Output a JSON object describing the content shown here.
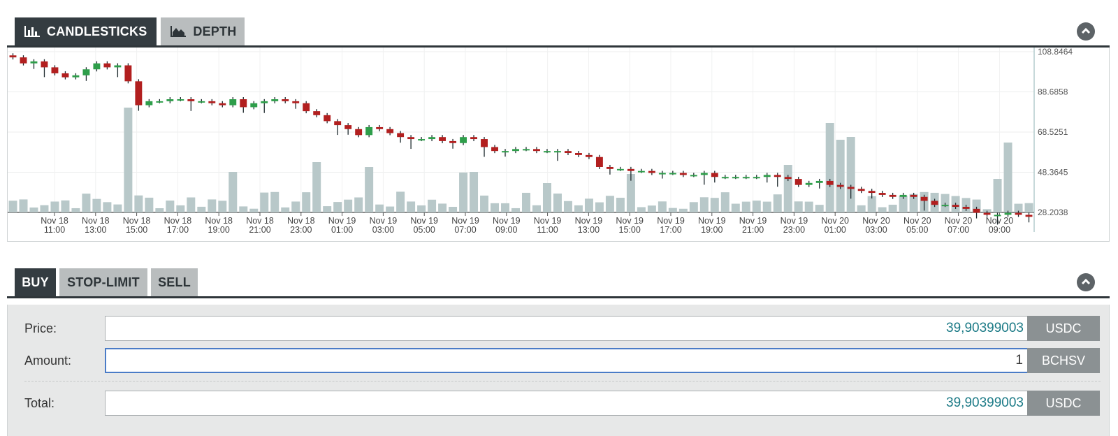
{
  "chart_panel": {
    "tabs": [
      {
        "label": "CANDLESTICKS",
        "icon": "bar-chart-icon",
        "active": true
      },
      {
        "label": "DEPTH",
        "icon": "area-chart-icon",
        "active": false
      }
    ],
    "collapse_icon": "chevron-up-icon"
  },
  "chart_data": {
    "type": "candlestick",
    "title": "",
    "y_ticks": [
      "108.8464",
      "88.6858",
      "68.5251",
      "48.3645",
      "28.2038"
    ],
    "ylim": [
      28.2038,
      108.8464
    ],
    "x_ticks": [
      {
        "date": "Nov 18",
        "time": "11:00"
      },
      {
        "date": "Nov 18",
        "time": "13:00"
      },
      {
        "date": "Nov 18",
        "time": "15:00"
      },
      {
        "date": "Nov 18",
        "time": "17:00"
      },
      {
        "date": "Nov 18",
        "time": "19:00"
      },
      {
        "date": "Nov 18",
        "time": "21:00"
      },
      {
        "date": "Nov 18",
        "time": "23:00"
      },
      {
        "date": "Nov 19",
        "time": "01:00"
      },
      {
        "date": "Nov 19",
        "time": "03:00"
      },
      {
        "date": "Nov 19",
        "time": "05:00"
      },
      {
        "date": "Nov 19",
        "time": "07:00"
      },
      {
        "date": "Nov 19",
        "time": "09:00"
      },
      {
        "date": "Nov 19",
        "time": "11:00"
      },
      {
        "date": "Nov 19",
        "time": "13:00"
      },
      {
        "date": "Nov 19",
        "time": "15:00"
      },
      {
        "date": "Nov 19",
        "time": "17:00"
      },
      {
        "date": "Nov 19",
        "time": "19:00"
      },
      {
        "date": "Nov 19",
        "time": "21:00"
      },
      {
        "date": "Nov 19",
        "time": "23:00"
      },
      {
        "date": "Nov 20",
        "time": "01:00"
      },
      {
        "date": "Nov 20",
        "time": "03:00"
      },
      {
        "date": "Nov 20",
        "time": "05:00"
      },
      {
        "date": "Nov 20",
        "time": "07:00"
      },
      {
        "date": "Nov 20",
        "time": "09:00"
      }
    ],
    "candle_close": [
      106,
      103,
      104,
      101,
      98,
      96,
      97,
      100,
      103,
      101,
      102,
      94,
      82,
      84,
      84,
      85,
      85,
      84,
      84,
      83,
      82,
      85,
      81,
      83,
      84,
      85,
      84,
      83,
      79,
      77,
      74,
      72,
      70,
      67,
      71,
      70,
      68,
      66,
      65,
      65,
      66,
      64,
      63,
      66,
      65,
      61,
      59,
      59,
      60,
      60,
      59,
      59,
      59,
      58,
      57,
      56,
      51,
      50,
      50,
      49,
      49,
      48,
      48,
      48,
      47,
      47,
      48,
      46,
      46,
      46,
      46,
      46,
      47,
      46,
      45,
      42,
      43,
      44,
      42,
      41,
      40,
      39,
      38,
      37,
      36,
      37,
      36,
      34,
      32,
      32,
      31,
      30,
      28,
      27,
      27,
      28,
      27,
      26
    ]
  },
  "order_panel": {
    "tabs": [
      {
        "label": "BUY",
        "active": true
      },
      {
        "label": "STOP-LIMIT",
        "active": false
      },
      {
        "label": "SELL",
        "active": false
      }
    ],
    "collapse_icon": "chevron-up-icon",
    "price": {
      "label": "Price:",
      "value": "39,90399003",
      "unit": "USDC"
    },
    "amount": {
      "label": "Amount:",
      "value": "1",
      "unit": "BCHSV"
    },
    "total": {
      "label": "Total:",
      "value": "39,90399003",
      "unit": "USDC"
    }
  }
}
